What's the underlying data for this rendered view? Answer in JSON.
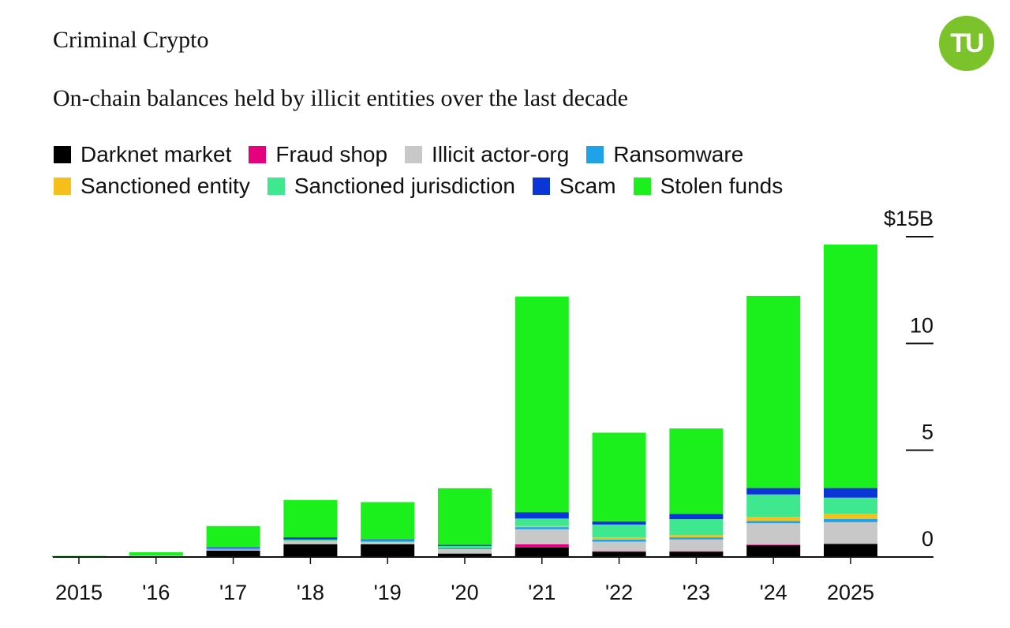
{
  "header": {
    "title": "Criminal Crypto",
    "subtitle": "On-chain balances held by illicit entities over the last decade",
    "logo_text": "TU",
    "logo_color": "#7cc22a"
  },
  "chart_data": {
    "type": "bar",
    "stacked": true,
    "title": "Criminal Crypto",
    "subtitle": "On-chain balances held by illicit entities over the last decade",
    "xlabel": "",
    "ylabel": "",
    "categories": [
      "2015",
      "'16",
      "'17",
      "'18",
      "'19",
      "'20",
      "'21",
      "'22",
      "'23",
      "'24",
      "2025"
    ],
    "ylim": [
      0,
      15
    ],
    "yticks": [
      0,
      5,
      10,
      15
    ],
    "ytick_labels": [
      "0",
      "5",
      "10",
      "$15B"
    ],
    "y_axis_position": "right",
    "grid": false,
    "legend_position": "top-left",
    "series": [
      {
        "name": "Darknet market",
        "color": "#000000",
        "values": [
          0.02,
          0.02,
          0.3,
          0.6,
          0.6,
          0.15,
          0.45,
          0.25,
          0.25,
          0.55,
          0.6
        ]
      },
      {
        "name": "Fraud shop",
        "color": "#e6007e",
        "values": [
          0,
          0,
          0,
          0,
          0,
          0.02,
          0.15,
          0.02,
          0.02,
          0.03,
          0.03
        ]
      },
      {
        "name": "Illicit actor-org",
        "color": "#c8c8c8",
        "values": [
          0.01,
          0.03,
          0.05,
          0.15,
          0.1,
          0.2,
          0.7,
          0.45,
          0.55,
          1.0,
          1.0
        ]
      },
      {
        "name": "Ransomware",
        "color": "#1fa3e8",
        "values": [
          0,
          0,
          0.02,
          0.02,
          0.02,
          0.05,
          0.1,
          0.1,
          0.1,
          0.1,
          0.15
        ]
      },
      {
        "name": "Sanctioned entity",
        "color": "#f5c01c",
        "values": [
          0,
          0,
          0,
          0,
          0,
          0,
          0.05,
          0.1,
          0.1,
          0.2,
          0.25
        ]
      },
      {
        "name": "Sanctioned jurisdiction",
        "color": "#3fe88f",
        "values": [
          0,
          0.02,
          0.03,
          0.05,
          0.05,
          0.1,
          0.35,
          0.6,
          0.75,
          1.05,
          0.75
        ]
      },
      {
        "name": "Scam",
        "color": "#0a36d8",
        "values": [
          0,
          0,
          0.05,
          0.1,
          0.05,
          0.05,
          0.3,
          0.15,
          0.25,
          0.3,
          0.45
        ]
      },
      {
        "name": "Stolen funds",
        "color": "#1cf01c",
        "values": [
          0.02,
          0.15,
          1.0,
          1.75,
          1.75,
          2.65,
          10.1,
          4.15,
          4.0,
          9.0,
          11.4
        ]
      }
    ]
  }
}
